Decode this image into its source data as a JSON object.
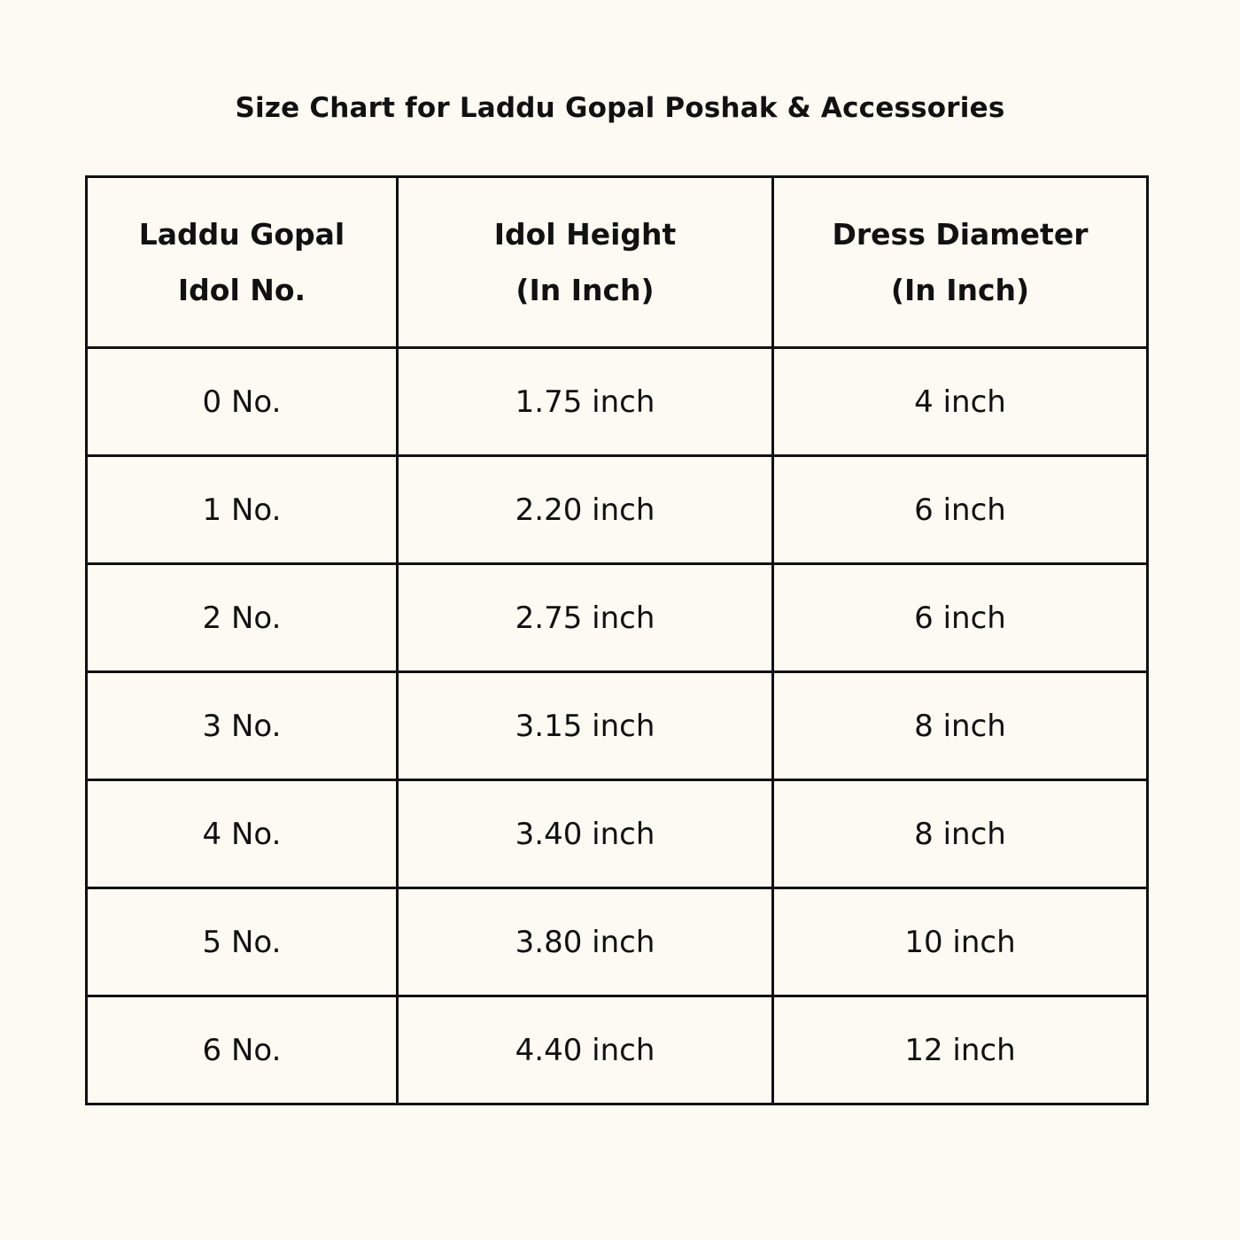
{
  "title": "Size Chart for Laddu Gopal Poshak & Accessories",
  "table": {
    "headers": [
      [
        "Laddu Gopal",
        "Idol No."
      ],
      [
        "Idol Height",
        "(In Inch)"
      ],
      [
        "Dress Diameter",
        "(In Inch)"
      ]
    ],
    "rows": [
      [
        "0 No.",
        "1.75 inch",
        "4 inch"
      ],
      [
        "1 No.",
        "2.20 inch",
        "6 inch"
      ],
      [
        "2 No.",
        "2.75 inch",
        "6 inch"
      ],
      [
        "3 No.",
        "3.15 inch",
        "8 inch"
      ],
      [
        "4 No.",
        "3.40 inch",
        "8 inch"
      ],
      [
        "5 No.",
        "3.80 inch",
        "10 inch"
      ],
      [
        "6 No.",
        "4.40 inch",
        "12 inch"
      ]
    ]
  }
}
